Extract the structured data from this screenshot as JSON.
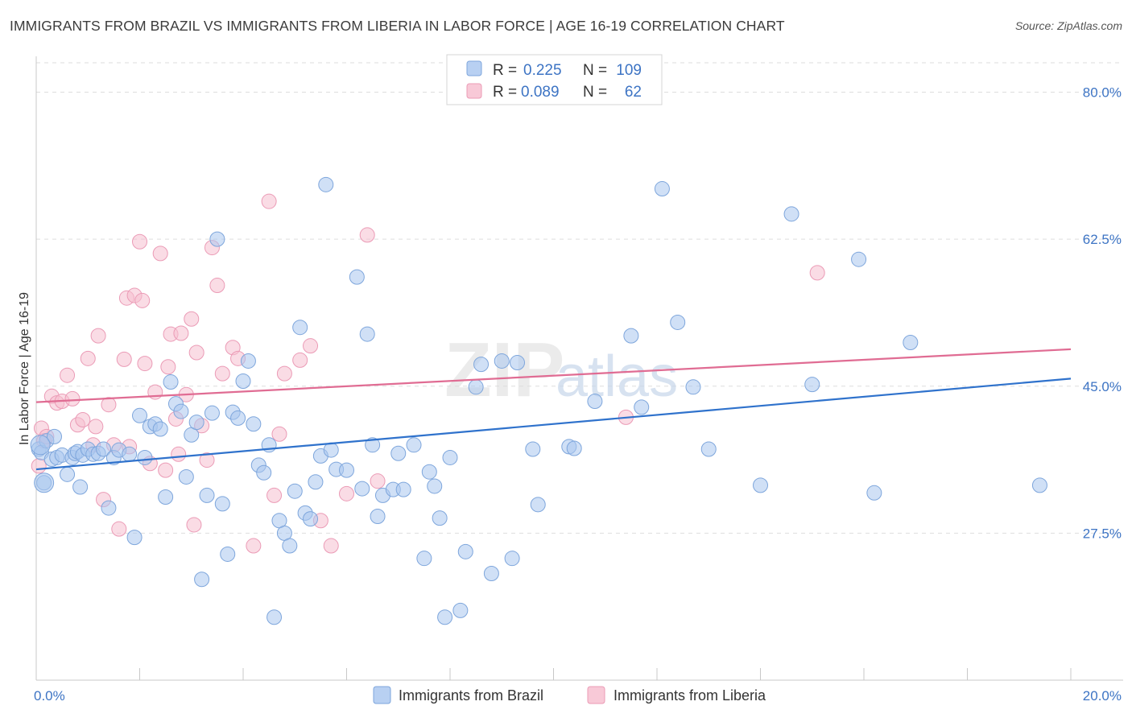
{
  "title": "IMMIGRANTS FROM BRAZIL VS IMMIGRANTS FROM LIBERIA IN LABOR FORCE | AGE 16-19 CORRELATION CHART",
  "source": "Source: ZipAtlas.com",
  "watermark": {
    "zip": "ZIP",
    "atlas": "atlas"
  },
  "colors": {
    "brazil_fill": "#a9c7ef",
    "brazil_stroke": "#7ea6dc",
    "brazil_line": "#2f72cc",
    "liberia_fill": "#f6bfd0",
    "liberia_stroke": "#eb9bb6",
    "liberia_line": "#e06c93",
    "tick_text": "#3d74c4"
  },
  "legend": {
    "rows": [
      {
        "r_label": "R =",
        "r_value": "0.225",
        "n_label": "N =",
        "n_value": "109"
      },
      {
        "r_label": "R =",
        "r_value": "0.089",
        "n_label": "N =",
        "n_value": "62"
      }
    ]
  },
  "bottom_legend": [
    "Immigrants from Brazil",
    "Immigrants from Liberia"
  ],
  "chart_data": {
    "type": "scatter",
    "title": "IMMIGRANTS FROM BRAZIL VS IMMIGRANTS FROM LIBERIA IN LABOR FORCE | AGE 16-19 CORRELATION CHART",
    "xlabel": "",
    "ylabel": "In Labor Force | Age 16-19",
    "xlim": [
      0,
      20
    ],
    "ylim": [
      10,
      83.5
    ],
    "x_tick_labels": [
      "0.0%",
      "20.0%"
    ],
    "y_ticks": [
      27.5,
      45.0,
      62.5,
      80.0
    ],
    "y_tick_labels": [
      "27.5%",
      "45.0%",
      "62.5%",
      "80.0%"
    ],
    "grid": "horizontal dashed",
    "legend_position": "top-center",
    "series": [
      {
        "name": "Immigrants from Brazil",
        "R": 0.225,
        "N": 109,
        "trend": {
          "x": [
            0,
            20
          ],
          "y": [
            35.1,
            45.9
          ]
        },
        "points": [
          [
            0.05,
            37.5
          ],
          [
            0.1,
            37.1
          ],
          [
            0.15,
            33.5
          ],
          [
            0.2,
            38.5
          ],
          [
            0.3,
            36.3
          ],
          [
            0.35,
            39.0
          ],
          [
            0.4,
            36.5
          ],
          [
            0.5,
            36.8
          ],
          [
            0.6,
            34.5
          ],
          [
            0.7,
            36.5
          ],
          [
            0.75,
            37.0
          ],
          [
            0.8,
            37.2
          ],
          [
            0.85,
            33.0
          ],
          [
            0.9,
            36.8
          ],
          [
            1.0,
            37.5
          ],
          [
            1.1,
            36.9
          ],
          [
            1.2,
            37.0
          ],
          [
            1.3,
            37.5
          ],
          [
            1.4,
            30.5
          ],
          [
            1.5,
            36.5
          ],
          [
            1.6,
            37.4
          ],
          [
            1.8,
            36.9
          ],
          [
            1.9,
            27.0
          ],
          [
            2.0,
            41.5
          ],
          [
            2.1,
            36.5
          ],
          [
            2.2,
            40.2
          ],
          [
            2.3,
            40.5
          ],
          [
            2.4,
            39.9
          ],
          [
            2.5,
            31.8
          ],
          [
            2.6,
            45.5
          ],
          [
            2.7,
            42.9
          ],
          [
            2.8,
            42.0
          ],
          [
            2.9,
            34.2
          ],
          [
            3.0,
            39.2
          ],
          [
            3.1,
            40.7
          ],
          [
            3.2,
            22.0
          ],
          [
            3.3,
            32.0
          ],
          [
            3.4,
            41.8
          ],
          [
            3.5,
            62.5
          ],
          [
            3.6,
            31.0
          ],
          [
            3.7,
            25.0
          ],
          [
            3.8,
            41.9
          ],
          [
            3.9,
            41.2
          ],
          [
            4.0,
            45.6
          ],
          [
            4.1,
            48.0
          ],
          [
            4.2,
            40.5
          ],
          [
            4.3,
            35.6
          ],
          [
            4.4,
            34.7
          ],
          [
            4.5,
            38.0
          ],
          [
            4.6,
            17.5
          ],
          [
            4.7,
            29.0
          ],
          [
            4.8,
            27.5
          ],
          [
            4.9,
            26.0
          ],
          [
            5.0,
            32.5
          ],
          [
            5.1,
            52.0
          ],
          [
            5.2,
            29.9
          ],
          [
            5.3,
            29.2
          ],
          [
            5.4,
            33.6
          ],
          [
            5.5,
            36.7
          ],
          [
            5.6,
            69.0
          ],
          [
            5.7,
            37.4
          ],
          [
            5.8,
            35.1
          ],
          [
            6.0,
            35.0
          ],
          [
            6.2,
            58.0
          ],
          [
            6.3,
            32.8
          ],
          [
            6.4,
            51.2
          ],
          [
            6.5,
            38.0
          ],
          [
            6.6,
            29.5
          ],
          [
            6.7,
            32.0
          ],
          [
            6.9,
            32.7
          ],
          [
            7.0,
            37.0
          ],
          [
            7.1,
            32.7
          ],
          [
            7.3,
            38.0
          ],
          [
            7.5,
            24.5
          ],
          [
            7.6,
            34.8
          ],
          [
            7.7,
            33.1
          ],
          [
            7.8,
            29.3
          ],
          [
            7.9,
            17.5
          ],
          [
            8.0,
            36.5
          ],
          [
            8.2,
            18.3
          ],
          [
            8.3,
            25.3
          ],
          [
            8.5,
            44.9
          ],
          [
            8.6,
            47.6
          ],
          [
            8.8,
            22.7
          ],
          [
            9.0,
            48.0
          ],
          [
            9.2,
            24.5
          ],
          [
            9.3,
            47.8
          ],
          [
            9.6,
            37.5
          ],
          [
            9.7,
            30.9
          ],
          [
            10.3,
            37.8
          ],
          [
            10.4,
            37.6
          ],
          [
            10.8,
            43.2
          ],
          [
            11.5,
            51.0
          ],
          [
            11.7,
            42.5
          ],
          [
            12.1,
            68.5
          ],
          [
            12.4,
            52.6
          ],
          [
            12.7,
            44.9
          ],
          [
            13.0,
            37.5
          ],
          [
            14.0,
            33.2
          ],
          [
            14.6,
            65.5
          ],
          [
            15.0,
            45.2
          ],
          [
            15.9,
            60.1
          ],
          [
            16.2,
            32.3
          ],
          [
            16.9,
            50.2
          ],
          [
            19.4,
            33.2
          ]
        ]
      },
      {
        "name": "Immigrants from Liberia",
        "R": 0.089,
        "N": 62,
        "trend": {
          "x": [
            0,
            20
          ],
          "y": [
            43.1,
            49.4
          ]
        },
        "points": [
          [
            0.05,
            35.5
          ],
          [
            0.1,
            40.0
          ],
          [
            0.15,
            38.5
          ],
          [
            0.2,
            39.0
          ],
          [
            0.3,
            43.8
          ],
          [
            0.4,
            43.0
          ],
          [
            0.5,
            43.2
          ],
          [
            0.6,
            46.3
          ],
          [
            0.7,
            43.5
          ],
          [
            0.8,
            40.4
          ],
          [
            0.9,
            41.0
          ],
          [
            1.0,
            48.3
          ],
          [
            1.1,
            38.0
          ],
          [
            1.15,
            40.2
          ],
          [
            1.2,
            51.0
          ],
          [
            1.3,
            31.5
          ],
          [
            1.4,
            42.8
          ],
          [
            1.5,
            38.0
          ],
          [
            1.6,
            28.0
          ],
          [
            1.7,
            48.2
          ],
          [
            1.75,
            55.5
          ],
          [
            1.8,
            37.8
          ],
          [
            1.9,
            55.8
          ],
          [
            2.0,
            62.2
          ],
          [
            2.05,
            55.2
          ],
          [
            2.1,
            47.7
          ],
          [
            2.2,
            35.8
          ],
          [
            2.3,
            44.3
          ],
          [
            2.4,
            60.8
          ],
          [
            2.5,
            35.0
          ],
          [
            2.55,
            47.3
          ],
          [
            2.6,
            51.2
          ],
          [
            2.7,
            41.1
          ],
          [
            2.75,
            36.9
          ],
          [
            2.8,
            51.3
          ],
          [
            2.9,
            44.0
          ],
          [
            3.0,
            53.0
          ],
          [
            3.05,
            28.5
          ],
          [
            3.1,
            49.0
          ],
          [
            3.2,
            40.3
          ],
          [
            3.3,
            36.2
          ],
          [
            3.4,
            61.5
          ],
          [
            3.5,
            57.0
          ],
          [
            3.6,
            46.5
          ],
          [
            3.8,
            49.6
          ],
          [
            3.9,
            48.3
          ],
          [
            4.2,
            26.0
          ],
          [
            4.5,
            67.0
          ],
          [
            4.6,
            32.0
          ],
          [
            4.7,
            39.3
          ],
          [
            4.8,
            46.5
          ],
          [
            5.1,
            48.1
          ],
          [
            5.3,
            49.8
          ],
          [
            5.5,
            29.0
          ],
          [
            5.7,
            26.0
          ],
          [
            6.0,
            32.2
          ],
          [
            6.4,
            63.0
          ],
          [
            6.6,
            33.7
          ],
          [
            11.4,
            41.3
          ],
          [
            15.1,
            58.5
          ]
        ]
      }
    ]
  }
}
